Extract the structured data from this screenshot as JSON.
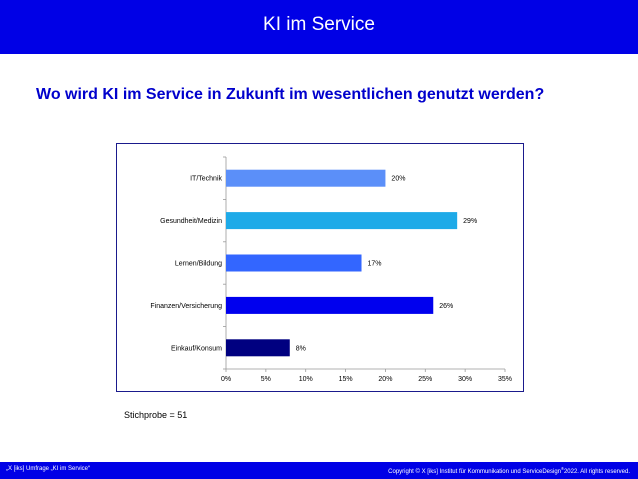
{
  "header": {
    "title": "KI im Service"
  },
  "question": "Wo wird KI im Service in Zukunft im wesentlichen genutzt werden?",
  "sample_note": "Stichprobe = 51",
  "footer": {
    "left": "„X [iks] Umfrage „KI im Service“",
    "right_main": "Copyright © X [iks] Institut für Kommunikation und ServiceDesign",
    "right_sup": "®",
    "right_tail": "2022. All rights reserved."
  },
  "colors": {
    "header_bg": "#0000e6",
    "question_text": "#0000cc",
    "bars": [
      "#5b8ff9",
      "#1eaae8",
      "#3366ff",
      "#0000ee",
      "#000080"
    ]
  },
  "chart_data": {
    "type": "bar",
    "orientation": "horizontal",
    "categories": [
      "IT/Technik",
      "Gesundheit/Medizin",
      "Lernen/Bildung",
      "Finanzen/Versicherung",
      "Einkauf/Konsum"
    ],
    "values": [
      20,
      29,
      17,
      26,
      8
    ],
    "value_labels": [
      "20%",
      "29%",
      "17%",
      "26%",
      "8%"
    ],
    "xlim": [
      0,
      35
    ],
    "xticks": [
      0,
      5,
      10,
      15,
      20,
      25,
      30,
      35
    ],
    "xtick_labels": [
      "0%",
      "5%",
      "10%",
      "15%",
      "20%",
      "25%",
      "30%",
      "35%"
    ],
    "grid": false,
    "legend": "none"
  }
}
